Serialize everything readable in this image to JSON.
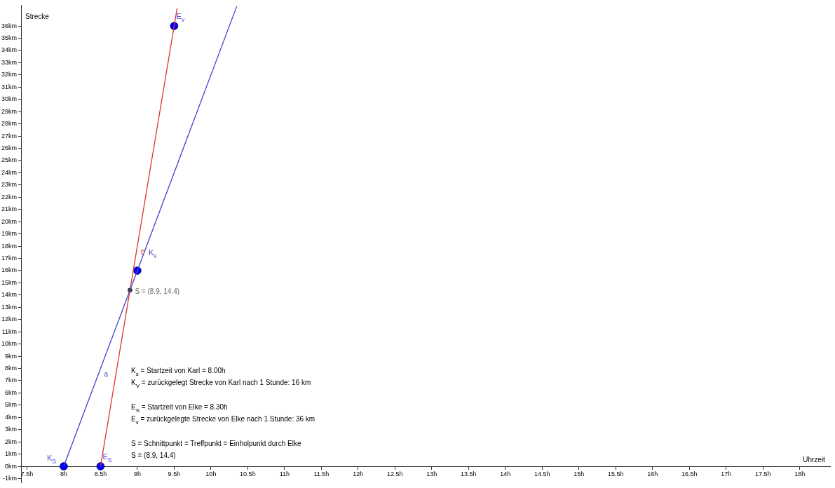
{
  "chart_data": {
    "type": "line",
    "xlabel": "Uhrzeit",
    "ylabel": "Strecke",
    "xlim": [
      7.42,
      18.42
    ],
    "ylim": [
      -1.35,
      37.7
    ],
    "xticks": [
      {
        "value": 7.5,
        "label": "7.5h"
      },
      {
        "value": 8,
        "label": "8h"
      },
      {
        "value": 8.5,
        "label": "8.5h"
      },
      {
        "value": 9,
        "label": "9h"
      },
      {
        "value": 9.5,
        "label": "9.5h"
      },
      {
        "value": 10,
        "label": "10h"
      },
      {
        "value": 10.5,
        "label": "10.5h"
      },
      {
        "value": 11,
        "label": "11h"
      },
      {
        "value": 11.5,
        "label": "11.5h"
      },
      {
        "value": 12,
        "label": "12h"
      },
      {
        "value": 12.5,
        "label": "12.5h"
      },
      {
        "value": 13,
        "label": "13h"
      },
      {
        "value": 13.5,
        "label": "13.5h"
      },
      {
        "value": 14,
        "label": "14h"
      },
      {
        "value": 14.5,
        "label": "14.5h"
      },
      {
        "value": 15,
        "label": "15h"
      },
      {
        "value": 15.5,
        "label": "15.5h"
      },
      {
        "value": 16,
        "label": "16h"
      },
      {
        "value": 16.5,
        "label": "16.5h"
      },
      {
        "value": 17,
        "label": "17h"
      },
      {
        "value": 17.5,
        "label": "17.5h"
      },
      {
        "value": 18,
        "label": "18h"
      }
    ],
    "yticks": [
      {
        "value": -1,
        "label": "-1km"
      },
      {
        "value": 0,
        "label": "0km"
      },
      {
        "value": 1,
        "label": "1km"
      },
      {
        "value": 2,
        "label": "2km"
      },
      {
        "value": 3,
        "label": "3km"
      },
      {
        "value": 4,
        "label": "4km"
      },
      {
        "value": 5,
        "label": "5km"
      },
      {
        "value": 6,
        "label": "6km"
      },
      {
        "value": 7,
        "label": "7km"
      },
      {
        "value": 8,
        "label": "8km"
      },
      {
        "value": 9,
        "label": "9km"
      },
      {
        "value": 10,
        "label": "10km"
      },
      {
        "value": 11,
        "label": "11km"
      },
      {
        "value": 12,
        "label": "12km"
      },
      {
        "value": 13,
        "label": "13km"
      },
      {
        "value": 14,
        "label": "14km"
      },
      {
        "value": 15,
        "label": "15km"
      },
      {
        "value": 16,
        "label": "16km"
      },
      {
        "value": 17,
        "label": "17km"
      },
      {
        "value": 18,
        "label": "18km"
      },
      {
        "value": 19,
        "label": "19km"
      },
      {
        "value": 20,
        "label": "20km"
      },
      {
        "value": 21,
        "label": "21km"
      },
      {
        "value": 22,
        "label": "22km"
      },
      {
        "value": 23,
        "label": "23km"
      },
      {
        "value": 24,
        "label": "24km"
      },
      {
        "value": 25,
        "label": "25km"
      },
      {
        "value": 26,
        "label": "26km"
      },
      {
        "value": 27,
        "label": "27km"
      },
      {
        "value": 28,
        "label": "28km"
      },
      {
        "value": 29,
        "label": "29km"
      },
      {
        "value": 30,
        "label": "30km"
      },
      {
        "value": 31,
        "label": "31km"
      },
      {
        "value": 32,
        "label": "32km"
      },
      {
        "value": 33,
        "label": "33km"
      },
      {
        "value": 34,
        "label": "34km"
      },
      {
        "value": 35,
        "label": "35km"
      },
      {
        "value": 36,
        "label": "36km"
      }
    ],
    "series": [
      {
        "name": "a",
        "marker": "none",
        "color": "#4040d0",
        "x": [
          8,
          9,
          10.35
        ],
        "values": [
          0,
          16,
          37.6
        ]
      },
      {
        "name": "b",
        "marker": "none",
        "color": "#e03030",
        "x": [
          8.5,
          9.5,
          9.54
        ],
        "values": [
          0,
          36,
          37.44
        ]
      },
      {
        "type": "scatter",
        "marker": "circle",
        "color": "#0000ff",
        "x": [
          8,
          9,
          8.5,
          9.5
        ],
        "values": [
          0,
          16,
          0,
          36
        ]
      },
      {
        "type": "scatter",
        "marker": "circle",
        "color": "#404040",
        "x": [
          8.9
        ],
        "values": [
          14.4
        ]
      }
    ],
    "annotations": [
      {
        "text": "K$_{S}$",
        "x": 8,
        "y": 0
      },
      {
        "text": "K$_{v}$",
        "x": 9,
        "y": 16
      },
      {
        "text": "E$_{S}$",
        "x": 8.5,
        "y": 0
      },
      {
        "text": "E$_{v}$",
        "x": 9.5,
        "y": 36
      },
      {
        "text": "S = (8.9, 14.4)",
        "x": 8.9,
        "y": 14.4
      },
      "K$_{s}$ = Startzeit von Karl = 8.00h",
      "K$_{V}$ = zurückgelegt Strecke von Karl nach 1 Stunde: 16 km",
      "E$_{S}$ = Startzeit von Elke = 8.30h",
      "E$_{v}$ = zurückgelegte Strecke von Elke nach 1 Stunde: 36 km",
      "S = Schnittpunkt = Treffpunkt = Einholpunkt durch Elke",
      "S = (8.9, 14.4)"
    ],
    "grid": false,
    "legend": false,
    "line_style": "solid"
  }
}
